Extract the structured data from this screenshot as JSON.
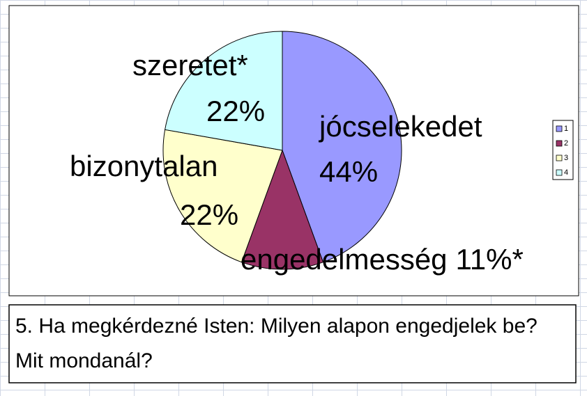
{
  "chart_data": {
    "type": "pie",
    "categories": [
      "1",
      "2",
      "3",
      "4"
    ],
    "labels": [
      "jócselekedet",
      "engedelmesség",
      "bizonytalan",
      "szeretet*"
    ],
    "values": [
      44,
      11,
      22,
      22
    ],
    "value_labels": [
      "44%",
      "11%*",
      "22%",
      "22%"
    ],
    "colors": [
      "#9999ff",
      "#993366",
      "#ffffcc",
      "#ccffff"
    ],
    "legend": "right"
  },
  "caption": "5. Ha megkérdezné Isten: Milyen alapon engedjelek be? Mit mondanál?"
}
